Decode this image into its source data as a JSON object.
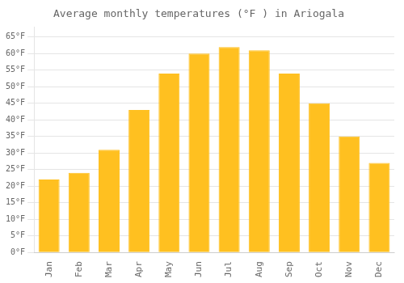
{
  "chart_data": {
    "type": "bar",
    "title": "Average monthly temperatures (°F ) in Ariogala",
    "categories": [
      "Jan",
      "Feb",
      "Mar",
      "Apr",
      "May",
      "Jun",
      "Jul",
      "Aug",
      "Sep",
      "Oct",
      "Nov",
      "Dec"
    ],
    "values": [
      22,
      24,
      31,
      43,
      54,
      60,
      62,
      61,
      54,
      45,
      35,
      27
    ],
    "color": "#FFC020",
    "ylim": [
      0,
      68
    ],
    "yticks": [
      {
        "value": 0,
        "label": "0°F"
      },
      {
        "value": 5,
        "label": "5°F"
      },
      {
        "value": 10,
        "label": "10°F"
      },
      {
        "value": 15,
        "label": "15°F"
      },
      {
        "value": 20,
        "label": "20°F"
      },
      {
        "value": 25,
        "label": "25°F"
      },
      {
        "value": 30,
        "label": "30°F"
      },
      {
        "value": 35,
        "label": "35°F"
      },
      {
        "value": 40,
        "label": "40°F"
      },
      {
        "value": 45,
        "label": "45°F"
      },
      {
        "value": 50,
        "label": "50°F"
      },
      {
        "value": 55,
        "label": "55°F"
      },
      {
        "value": 60,
        "label": "60°F"
      },
      {
        "value": 65,
        "label": "65°F"
      }
    ],
    "grid": true
  }
}
